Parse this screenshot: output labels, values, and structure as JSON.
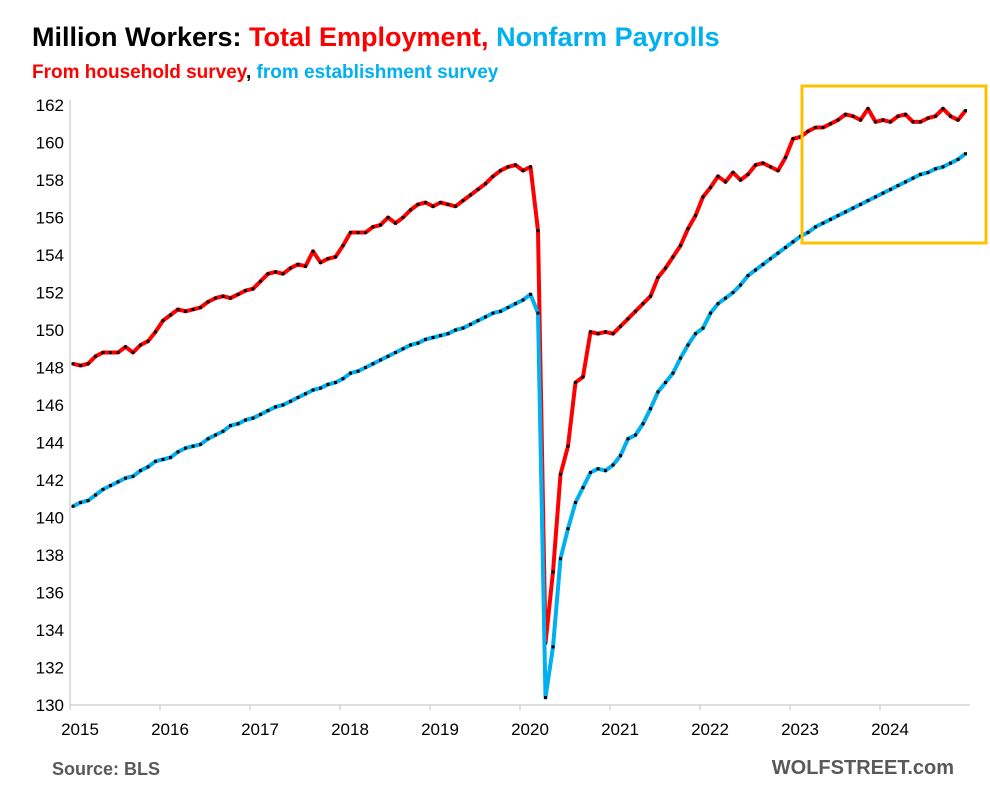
{
  "header": {
    "title_black": "Million Workers: ",
    "title_red": "Total Employment,",
    "title_blue": " Nonfarm Payrolls",
    "subtitle_red": "From household survey",
    "subtitle_black": ",",
    "subtitle_blue": " from establishment survey"
  },
  "footer": {
    "source": "Source: BLS",
    "brand": "WOLFSTREET.com"
  },
  "colors": {
    "household": "#ff0000",
    "payrolls": "#00b0f0",
    "highlight_box": "#ffc000",
    "title_black": "#000000"
  },
  "chart_data": {
    "type": "line",
    "title": "Million Workers: Total Employment, Nonfarm Payrolls",
    "subtitle": "From household survey, from establishment survey",
    "x_tick_labels": [
      "2015",
      "2016",
      "2017",
      "2018",
      "2019",
      "2020",
      "2021",
      "2022",
      "2023",
      "2024"
    ],
    "y_tick_labels": [
      130,
      132,
      134,
      136,
      138,
      140,
      142,
      144,
      146,
      148,
      150,
      152,
      154,
      156,
      158,
      160,
      162
    ],
    "ylim": [
      130,
      162
    ],
    "xlim": [
      "2015-01",
      "2024-12"
    ],
    "grid": false,
    "legend": "none",
    "annotation": "highlight box around 2023-02 to 2024-12",
    "x": [
      "2015-01",
      "2015-02",
      "2015-03",
      "2015-04",
      "2015-05",
      "2015-06",
      "2015-07",
      "2015-08",
      "2015-09",
      "2015-10",
      "2015-11",
      "2015-12",
      "2016-01",
      "2016-02",
      "2016-03",
      "2016-04",
      "2016-05",
      "2016-06",
      "2016-07",
      "2016-08",
      "2016-09",
      "2016-10",
      "2016-11",
      "2016-12",
      "2017-01",
      "2017-02",
      "2017-03",
      "2017-04",
      "2017-05",
      "2017-06",
      "2017-07",
      "2017-08",
      "2017-09",
      "2017-10",
      "2017-11",
      "2017-12",
      "2018-01",
      "2018-02",
      "2018-03",
      "2018-04",
      "2018-05",
      "2018-06",
      "2018-07",
      "2018-08",
      "2018-09",
      "2018-10",
      "2018-11",
      "2018-12",
      "2019-01",
      "2019-02",
      "2019-03",
      "2019-04",
      "2019-05",
      "2019-06",
      "2019-07",
      "2019-08",
      "2019-09",
      "2019-10",
      "2019-11",
      "2019-12",
      "2020-01",
      "2020-02",
      "2020-03",
      "2020-04",
      "2020-05",
      "2020-06",
      "2020-07",
      "2020-08",
      "2020-09",
      "2020-10",
      "2020-11",
      "2020-12",
      "2021-01",
      "2021-02",
      "2021-03",
      "2021-04",
      "2021-05",
      "2021-06",
      "2021-07",
      "2021-08",
      "2021-09",
      "2021-10",
      "2021-11",
      "2021-12",
      "2022-01",
      "2022-02",
      "2022-03",
      "2022-04",
      "2022-05",
      "2022-06",
      "2022-07",
      "2022-08",
      "2022-09",
      "2022-10",
      "2022-11",
      "2022-12",
      "2023-01",
      "2023-02",
      "2023-03",
      "2023-04",
      "2023-05",
      "2023-06",
      "2023-07",
      "2023-08",
      "2023-09",
      "2023-10",
      "2023-11",
      "2023-12",
      "2024-01",
      "2024-02",
      "2024-03",
      "2024-04",
      "2024-05",
      "2024-06",
      "2024-07",
      "2024-08",
      "2024-09",
      "2024-10",
      "2024-11",
      "2024-12"
    ],
    "series": [
      {
        "values": [
          148.2,
          148.1,
          148.2,
          148.6,
          148.8,
          148.8,
          148.8,
          149.1,
          148.8,
          149.2,
          149.4,
          149.9,
          150.5,
          150.8,
          151.1,
          151.0,
          151.1,
          151.2,
          151.5,
          151.7,
          151.8,
          151.7,
          151.9,
          152.1,
          152.2,
          152.6,
          153.0,
          153.1,
          153.0,
          153.3,
          153.5,
          153.4,
          154.2,
          153.6,
          153.8,
          153.9,
          154.5,
          155.2,
          155.2,
          155.2,
          155.5,
          155.6,
          156.0,
          155.7,
          156.0,
          156.4,
          156.7,
          156.8,
          156.6,
          156.8,
          156.7,
          156.6,
          156.9,
          157.2,
          157.5,
          157.8,
          158.2,
          158.5,
          158.7,
          158.8,
          158.5,
          158.7,
          155.3,
          133.3,
          137.1,
          142.3,
          143.8,
          147.2,
          147.5,
          149.9,
          149.8,
          149.9,
          149.8,
          150.2,
          150.6,
          151.0,
          151.4,
          151.8,
          152.8,
          153.3,
          153.9,
          154.5,
          155.4,
          156.1,
          157.1,
          157.6,
          158.2,
          157.9,
          158.4,
          158.0,
          158.3,
          158.8,
          158.9,
          158.7,
          158.5,
          159.2,
          160.2,
          160.3,
          160.6,
          160.8,
          160.8,
          161.0,
          161.2,
          161.5,
          161.4,
          161.2,
          161.8,
          161.1,
          161.2,
          161.1,
          161.4,
          161.5,
          161.1,
          161.1,
          161.3,
          161.4,
          161.8,
          161.4,
          161.2,
          161.7
        ]
      },
      {
        "values": [
          140.6,
          140.8,
          140.9,
          141.2,
          141.5,
          141.7,
          141.9,
          142.1,
          142.2,
          142.5,
          142.7,
          143.0,
          143.1,
          143.2,
          143.5,
          143.7,
          143.8,
          143.9,
          144.2,
          144.4,
          144.6,
          144.9,
          145.0,
          145.2,
          145.3,
          145.5,
          145.7,
          145.9,
          146.0,
          146.2,
          146.4,
          146.6,
          146.8,
          146.9,
          147.1,
          147.2,
          147.4,
          147.7,
          147.8,
          148.0,
          148.2,
          148.4,
          148.6,
          148.8,
          149.0,
          149.2,
          149.3,
          149.5,
          149.6,
          149.7,
          149.8,
          150.0,
          150.1,
          150.3,
          150.5,
          150.7,
          150.9,
          151.0,
          151.2,
          151.4,
          151.6,
          151.9,
          150.9,
          130.4,
          133.1,
          137.8,
          139.4,
          140.8,
          141.6,
          142.4,
          142.6,
          142.5,
          142.8,
          143.3,
          144.2,
          144.4,
          145.0,
          145.8,
          146.7,
          147.2,
          147.7,
          148.5,
          149.2,
          149.8,
          150.1,
          150.9,
          151.4,
          151.7,
          152.0,
          152.4,
          152.9,
          153.2,
          153.5,
          153.8,
          154.1,
          154.4,
          154.7,
          155.0,
          155.2,
          155.5,
          155.7,
          155.9,
          156.1,
          156.3,
          156.5,
          156.7,
          156.9,
          157.1,
          157.3,
          157.5,
          157.7,
          157.9,
          158.1,
          158.3,
          158.4,
          158.6,
          158.7,
          158.9,
          159.1,
          159.4
        ]
      }
    ]
  }
}
